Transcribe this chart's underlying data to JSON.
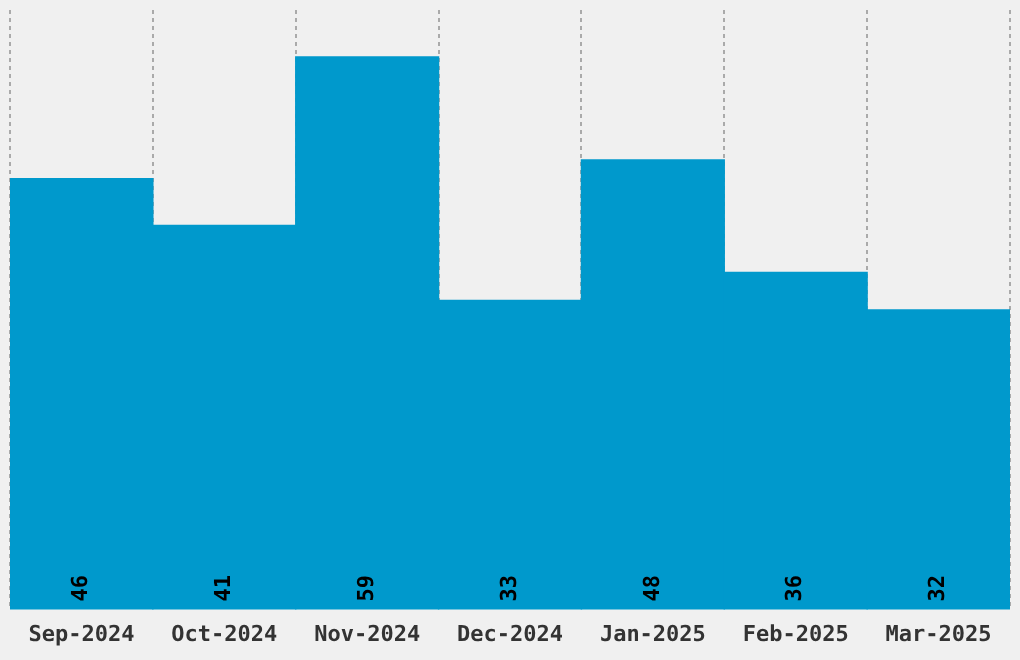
{
  "chart_data": {
    "type": "bar",
    "categories": [
      "Sep-2024",
      "Oct-2024",
      "Nov-2024",
      "Dec-2024",
      "Jan-2025",
      "Feb-2025",
      "Mar-2025"
    ],
    "values": [
      46,
      41,
      59,
      33,
      48,
      36,
      32
    ],
    "color": "#0099cc",
    "ylim": [
      0,
      64
    ],
    "tick_labels": "x",
    "grid": "x",
    "data_labels": true
  }
}
